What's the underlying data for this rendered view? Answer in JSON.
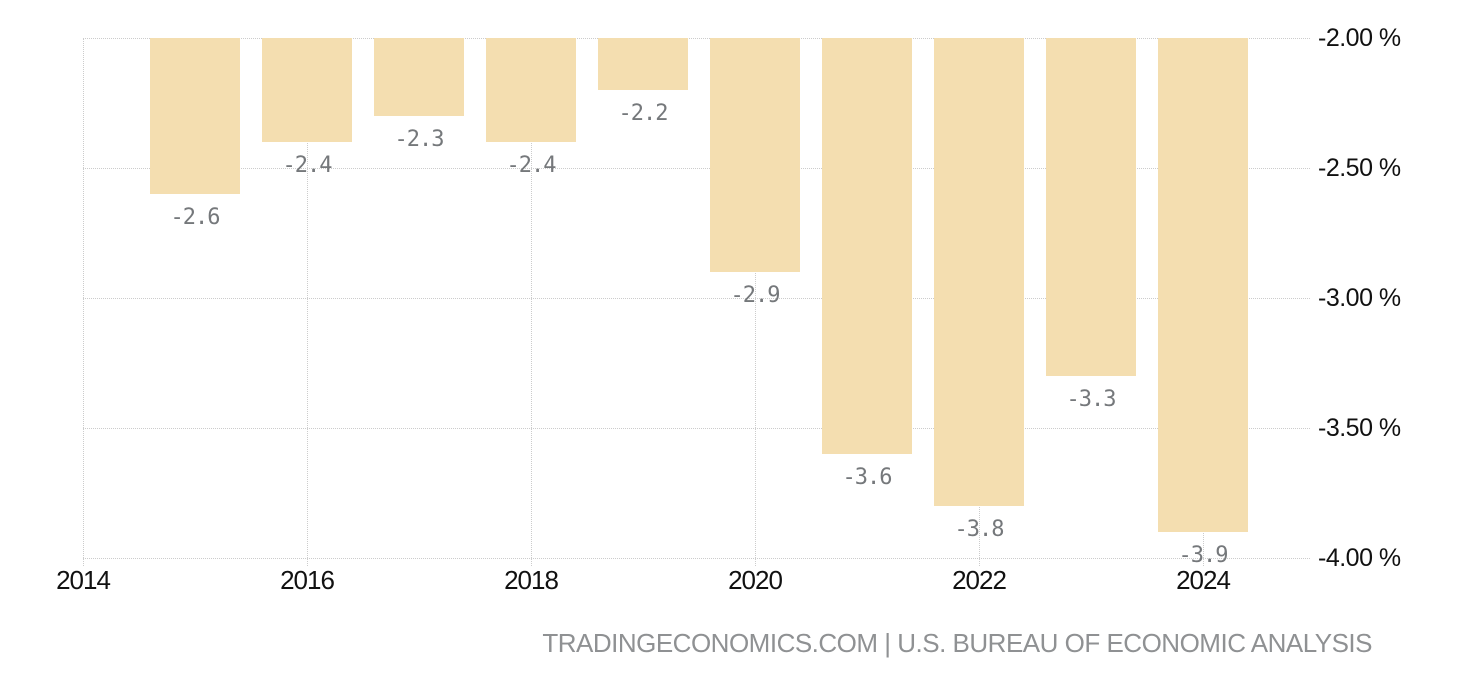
{
  "chart_data": {
    "type": "bar",
    "title": "",
    "xlabel": "",
    "ylabel": "",
    "categories": [
      "2015",
      "2016",
      "2017",
      "2018",
      "2019",
      "2020",
      "2021",
      "2022",
      "2023",
      "2024"
    ],
    "values": [
      -2.6,
      -2.4,
      -2.3,
      -2.4,
      -2.2,
      -2.9,
      -3.6,
      -3.8,
      -3.3,
      -3.9
    ],
    "bar_labels": [
      "-2.6",
      "-2.4",
      "-2.3",
      "-2.4",
      "-2.2",
      "-2.9",
      "-3.6",
      "-3.8",
      "-3.3",
      "-3.9"
    ],
    "ylim": [
      -4.0,
      -2.0
    ],
    "grid": "dotted",
    "legend": "none",
    "x_axis": {
      "tick_labels": [
        "2014",
        "2016",
        "2018",
        "2020",
        "2022",
        "2024"
      ],
      "tick_years": [
        2014,
        2016,
        2018,
        2020,
        2022,
        2024
      ]
    },
    "y_axis": {
      "side": "right",
      "tick_labels": [
        "-2.00 %",
        "-2.50 %",
        "-3.00 %",
        "-3.50 %",
        "-4.00 %"
      ],
      "tick_values": [
        -2.0,
        -2.5,
        -3.0,
        -3.5,
        -4.0
      ]
    },
    "colors": {
      "bar": "#F4DEB0",
      "grid": "#CCCCCC",
      "value_label": "#75787B",
      "axis_label": "#111111"
    }
  },
  "footer": {
    "attribution": "TRADINGECONOMICS.COM | U.S. BUREAU OF ECONOMIC ANALYSIS",
    "color": "#8F9193"
  }
}
